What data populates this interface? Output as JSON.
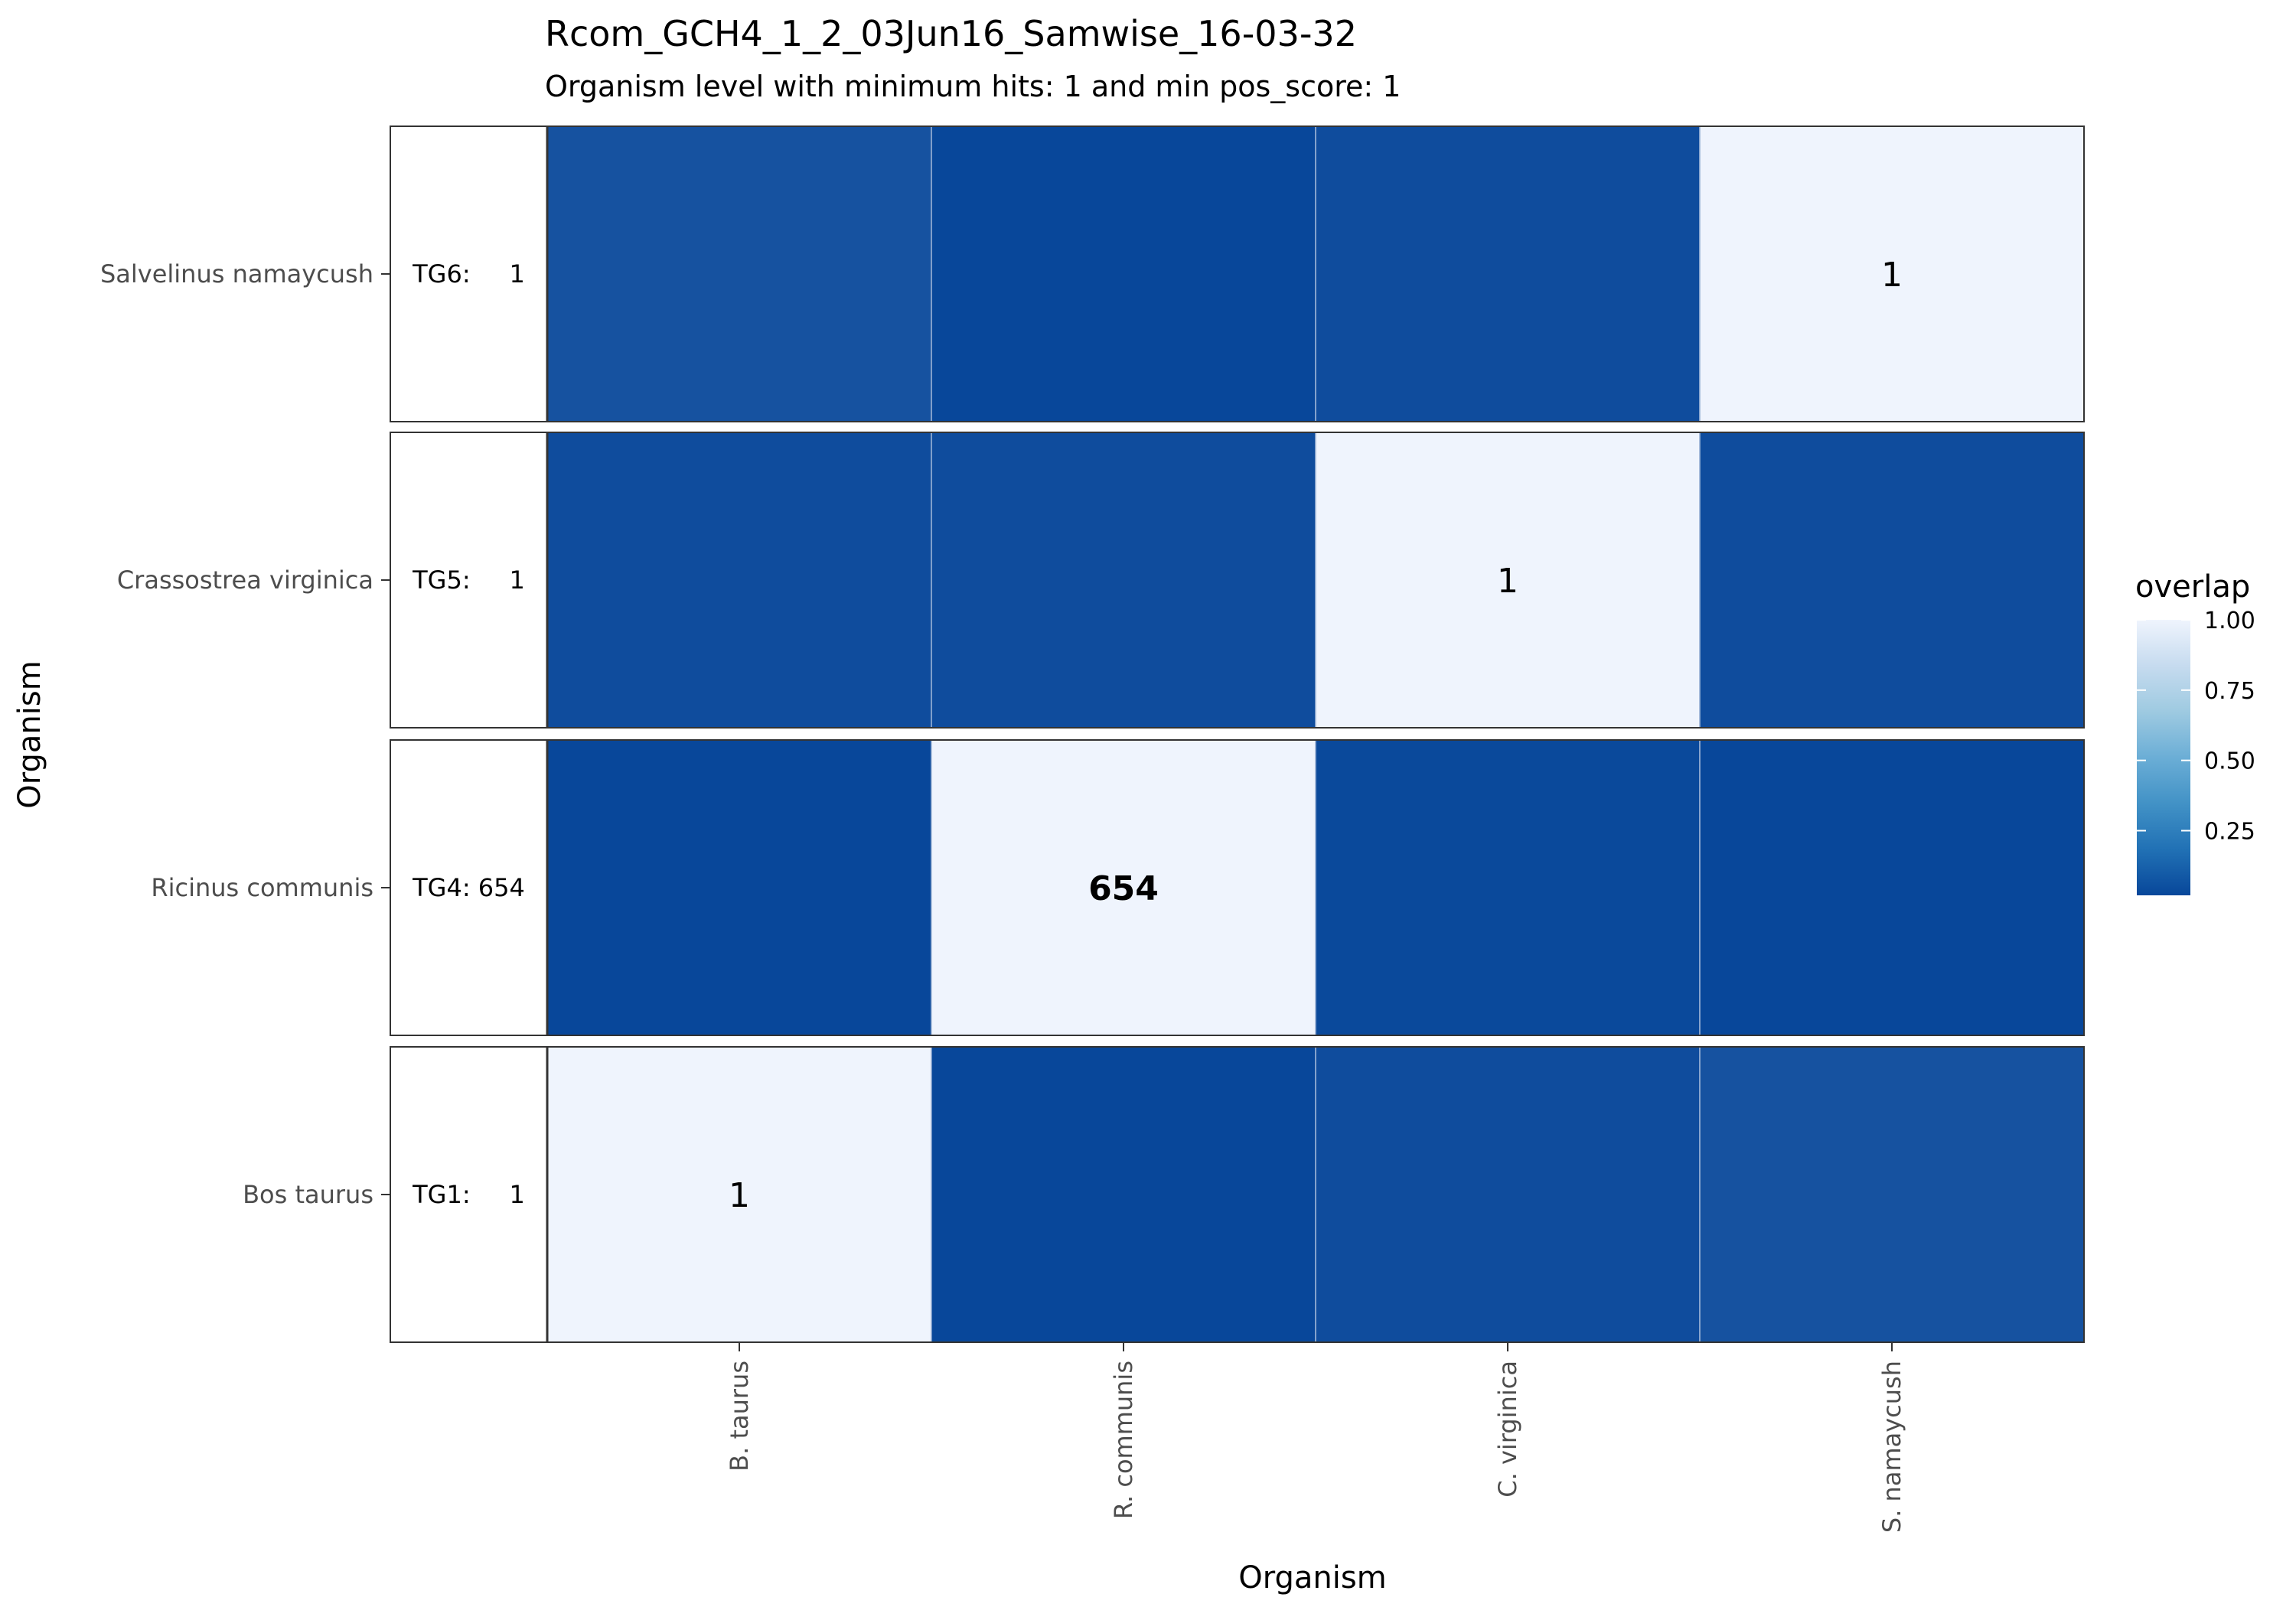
{
  "chart_data": {
    "type": "heatmap",
    "title": "Rcom_GCH4_1_2_03Jun16_Samwise_16-03-32",
    "subtitle": "Organism level with minimum hits: 1 and min pos_score: 1",
    "xlabel": "Organism",
    "ylabel": "Organism",
    "x_categories": [
      "B. taurus",
      "R. communis",
      "C. virginica",
      "S. namaycush"
    ],
    "rows": [
      {
        "organism": "Salvelinus namaycush",
        "group": "TG6:",
        "hits": "1",
        "values": [
          0.08,
          0.02,
          0.05,
          1.0
        ],
        "labels": [
          "",
          "",
          "",
          "1"
        ],
        "highlight": [
          false,
          false,
          false,
          false
        ]
      },
      {
        "organism": "Crassostrea virginica",
        "group": "TG5:",
        "hits": "1",
        "values": [
          0.05,
          0.05,
          1.0,
          0.05
        ],
        "labels": [
          "",
          "",
          "1",
          ""
        ],
        "highlight": [
          false,
          false,
          false,
          false
        ]
      },
      {
        "organism": "Ricinus communis",
        "group": "TG4:",
        "hits": "654",
        "values": [
          0.02,
          1.0,
          0.03,
          0.02
        ],
        "labels": [
          "",
          "654",
          "",
          ""
        ],
        "highlight": [
          false,
          true,
          false,
          false
        ]
      },
      {
        "organism": "Bos taurus",
        "group": "TG1:",
        "hits": "1",
        "values": [
          1.0,
          0.02,
          0.05,
          0.08
        ],
        "labels": [
          "1",
          "",
          "",
          ""
        ],
        "highlight": [
          false,
          false,
          false,
          false
        ]
      }
    ],
    "legend": {
      "title": "overlap",
      "ticks": [
        1.0,
        0.75,
        0.5,
        0.25
      ],
      "tick_labels": [
        "1.00",
        "0.75",
        "0.50",
        "0.25"
      ],
      "range": [
        0.02,
        1.0
      ],
      "low_color": "#08479a",
      "high_color": "#eff4fd",
      "mid_colors": [
        "#08479a",
        "#2171b5",
        "#4292c6",
        "#6baed6",
        "#9ecae1",
        "#c6dbef",
        "#eff4fd"
      ],
      "placement": "right"
    },
    "highlight_color": "#ff0000",
    "grid": false
  }
}
